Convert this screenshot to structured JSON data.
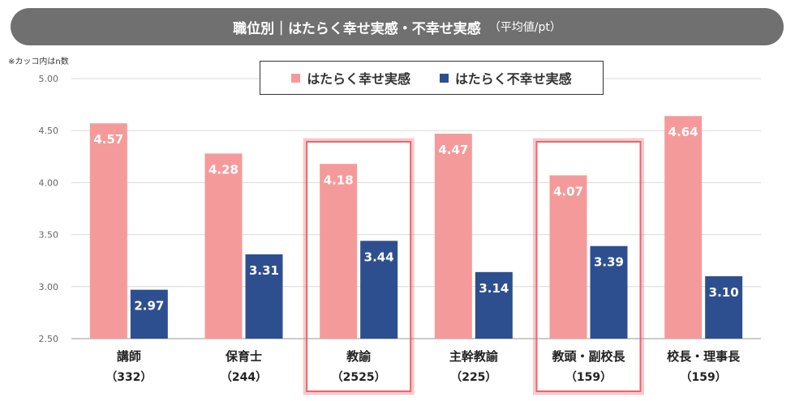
{
  "title": {
    "main": "職位別｜はたらく幸せ実感・不幸せ実感",
    "sub": "（平均値/pt）"
  },
  "note": "※カッコ内はn数",
  "colors": {
    "happy": "#f59a9a",
    "unhappy": "#2e4f8f",
    "highlight": "#e8656a",
    "axis": "#666666"
  },
  "chart_data": {
    "type": "bar",
    "title": "職位別｜はたらく幸せ実感・不幸せ実感（平均値/pt）",
    "categories": [
      "講師",
      "保育士",
      "教諭",
      "主幹教諭",
      "教頭・副校長",
      "校長・理事長"
    ],
    "n_labels": [
      "（332）",
      "（244）",
      "（2525）",
      "（225）",
      "（159）",
      "（159）"
    ],
    "series": [
      {
        "name": "はたらく幸せ実感",
        "values": [
          4.57,
          4.28,
          4.18,
          4.47,
          4.07,
          4.64
        ]
      },
      {
        "name": "はたらく不幸せ実感",
        "values": [
          2.97,
          3.31,
          3.44,
          3.14,
          3.39,
          3.1
        ]
      }
    ],
    "ylim": [
      2.5,
      5.0
    ],
    "yticks": [
      "5.00",
      "4.50",
      "4.00",
      "3.50",
      "3.00",
      "2.50"
    ],
    "grid": true,
    "legend": "top-center",
    "highlighted_categories": [
      "教諭",
      "教頭・副校長"
    ]
  }
}
